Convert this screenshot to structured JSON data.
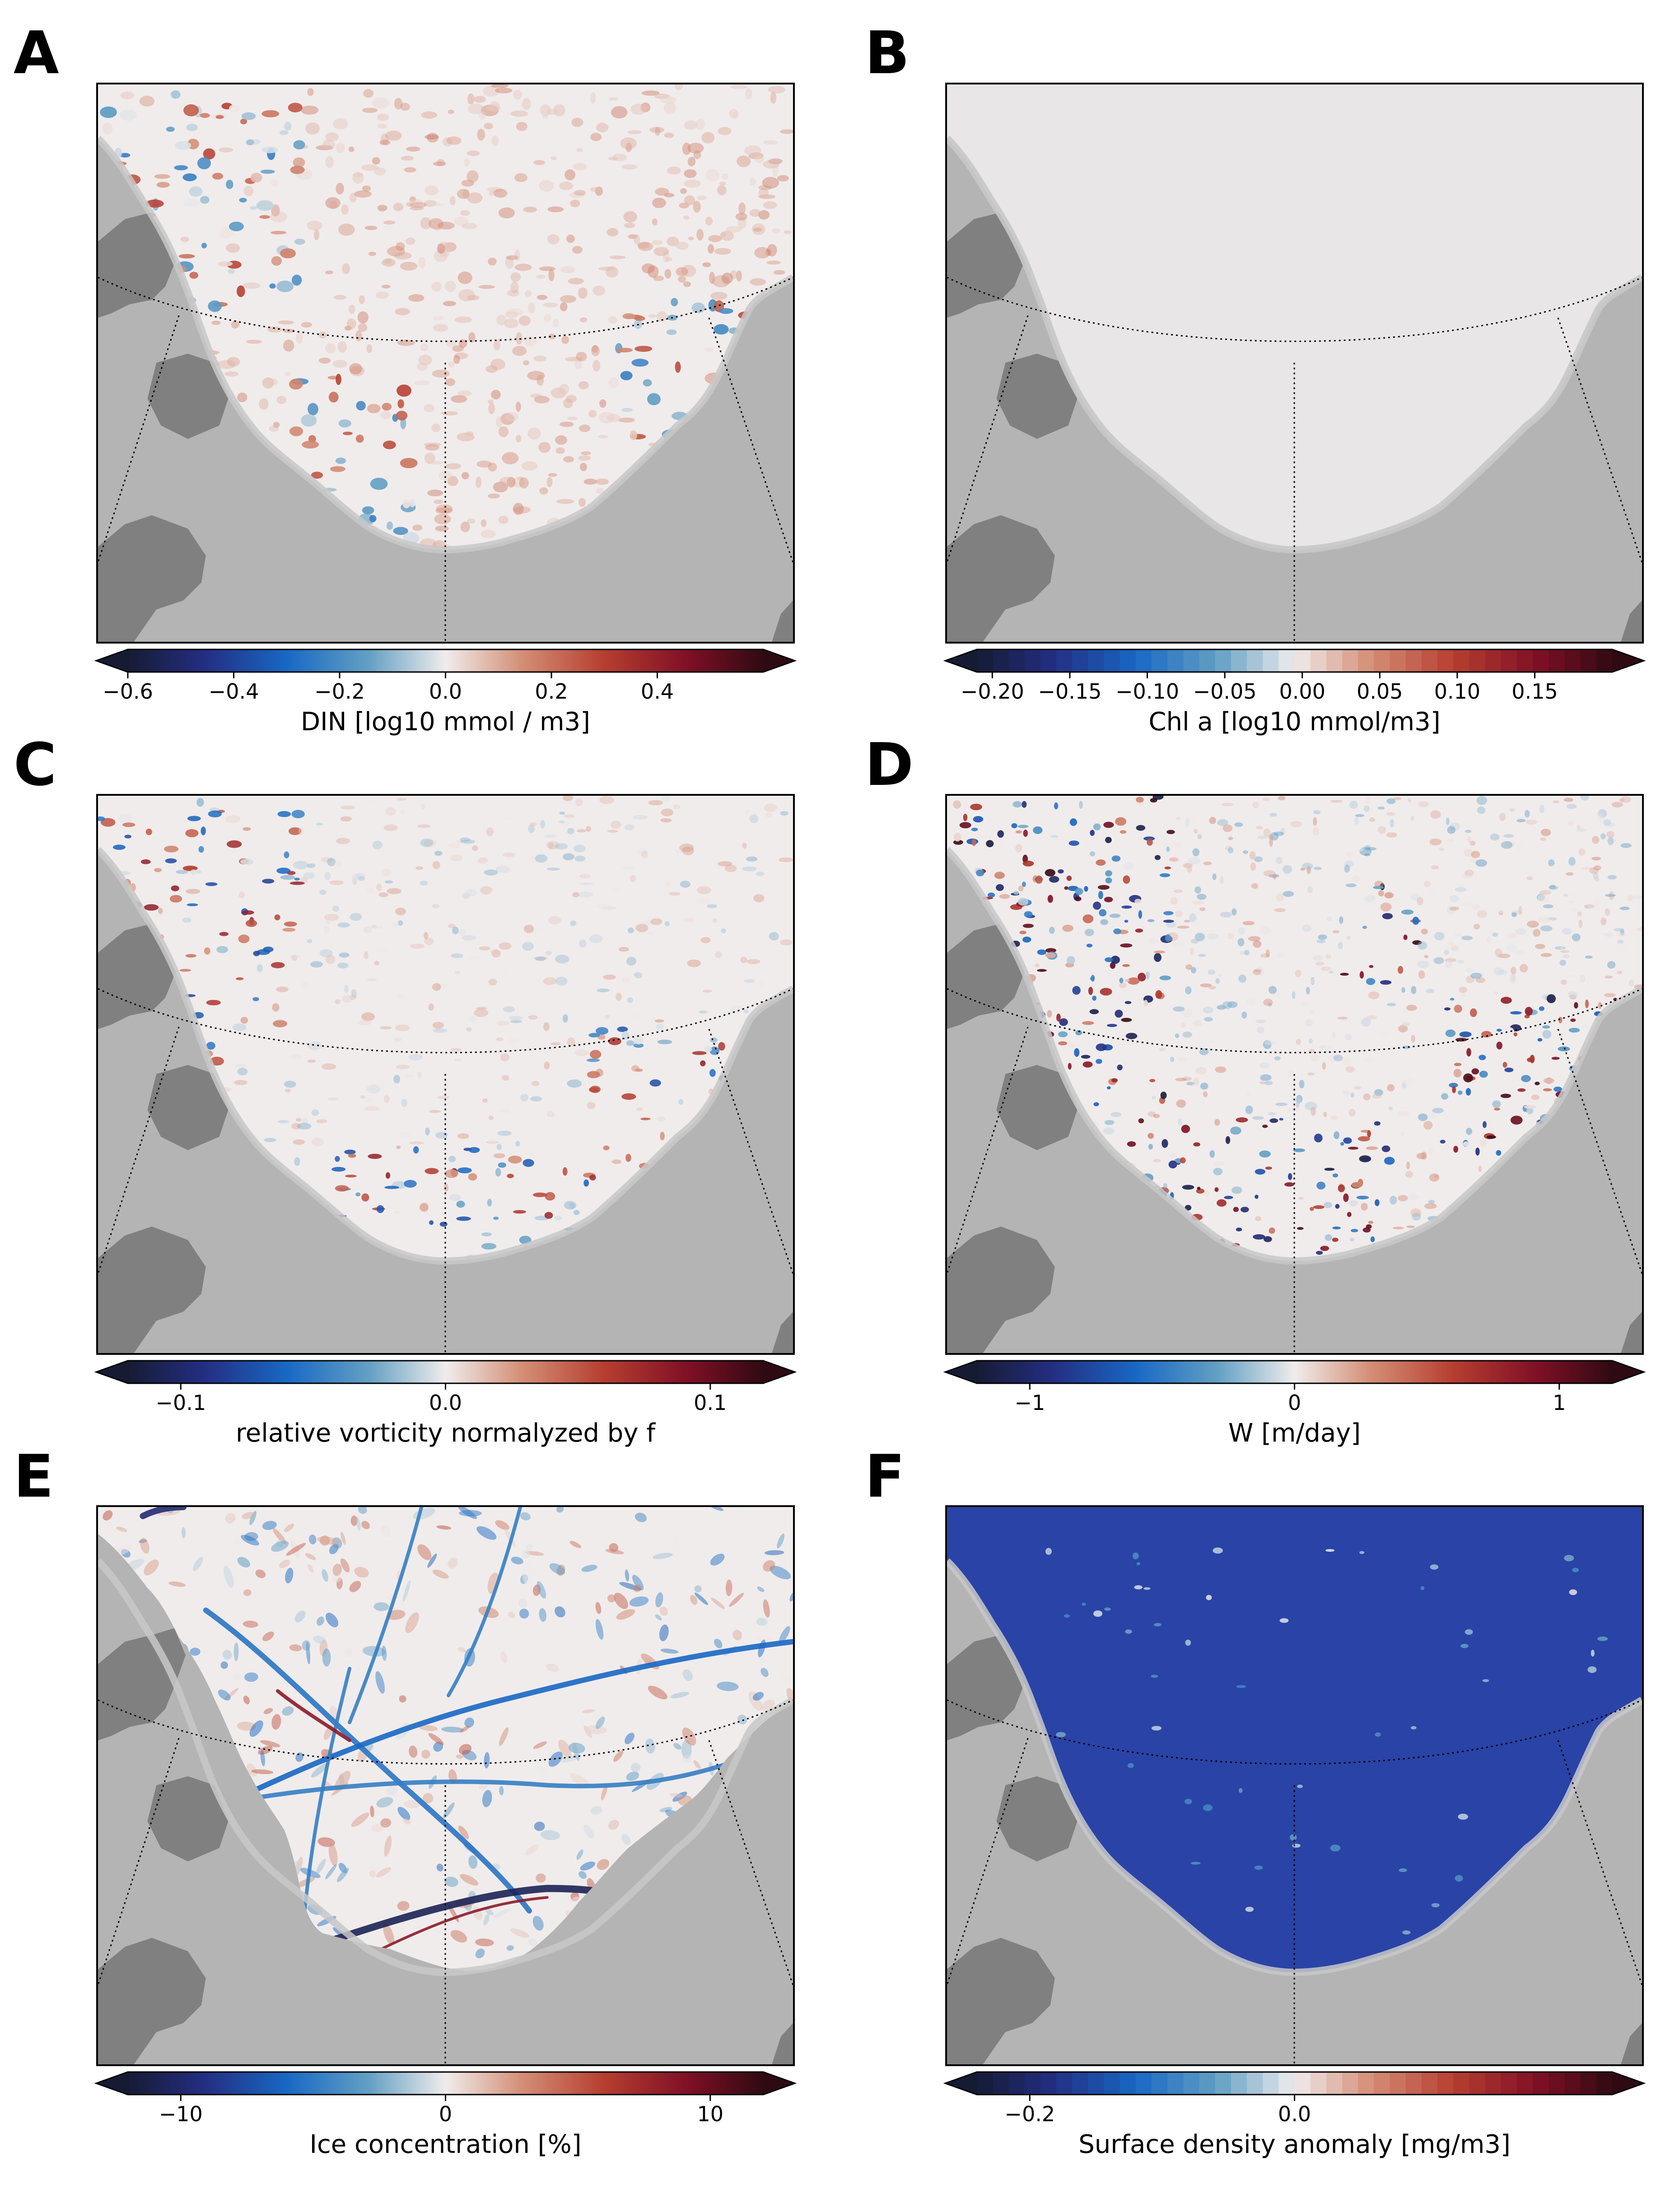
{
  "panels": [
    {
      "letter": "A",
      "field": "din",
      "colorbar_label": "DIN [log10 mmol / m3]",
      "cmap": "balance",
      "discrete": false,
      "range": [
        -0.6,
        0.6
      ],
      "ticks": [
        {
          "value": -0.6,
          "label": "−0.6"
        },
        {
          "value": -0.4,
          "label": "−0.4"
        },
        {
          "value": -0.2,
          "label": "−0.2"
        },
        {
          "value": 0.0,
          "label": "0.0"
        },
        {
          "value": 0.2,
          "label": "0.2"
        },
        {
          "value": 0.4,
          "label": "0.4"
        }
      ]
    },
    {
      "letter": "B",
      "field": "chl",
      "colorbar_label": "Chl a [log10 mmol/m3]",
      "cmap": "balance",
      "discrete": true,
      "range": [
        -0.21,
        0.2
      ],
      "ticks": [
        {
          "value": -0.2,
          "label": "−0.20"
        },
        {
          "value": -0.15,
          "label": "−0.15"
        },
        {
          "value": -0.1,
          "label": "−0.10"
        },
        {
          "value": -0.05,
          "label": "−0.05"
        },
        {
          "value": 0.0,
          "label": "0.00"
        },
        {
          "value": 0.05,
          "label": "0.05"
        },
        {
          "value": 0.1,
          "label": "0.10"
        },
        {
          "value": 0.15,
          "label": "0.15"
        }
      ]
    },
    {
      "letter": "C",
      "field": "vort",
      "colorbar_label": "relative vorticity normalyzed by f",
      "cmap": "balance",
      "discrete": false,
      "range": [
        -0.12,
        0.12
      ],
      "ticks": [
        {
          "value": -0.1,
          "label": "−0.1"
        },
        {
          "value": 0.0,
          "label": "0.0"
        },
        {
          "value": 0.1,
          "label": "0.1"
        }
      ]
    },
    {
      "letter": "D",
      "field": "w",
      "colorbar_label": "W [m/day]",
      "cmap": "balance",
      "discrete": false,
      "range": [
        -1.2,
        1.2
      ],
      "ticks": [
        {
          "value": -1,
          "label": "−1"
        },
        {
          "value": 0,
          "label": "0"
        },
        {
          "value": 1,
          "label": "1"
        }
      ]
    },
    {
      "letter": "E",
      "field": "ice",
      "colorbar_label": "Ice concentration [%]",
      "cmap": "balance",
      "discrete": false,
      "range": [
        -12,
        12
      ],
      "ticks": [
        {
          "value": -10,
          "label": "−10"
        },
        {
          "value": 0,
          "label": "0"
        },
        {
          "value": 10,
          "label": "10"
        }
      ]
    },
    {
      "letter": "F",
      "field": "dens",
      "colorbar_label": "Surface density anomaly [mg/m3]",
      "cmap": "balance",
      "discrete": true,
      "range": [
        -0.24,
        0.24
      ],
      "ticks": [
        {
          "value": -0.2,
          "label": "−0.2"
        },
        {
          "value": 0.0,
          "label": "0.0"
        }
      ]
    }
  ],
  "colors": {
    "land": "#b4b4b4",
    "dark_land": "#808080",
    "ice_shelf_edge": "#c8c8c8",
    "density_fill": "#2a43a6",
    "chl_fill": "#e8e6e7"
  }
}
